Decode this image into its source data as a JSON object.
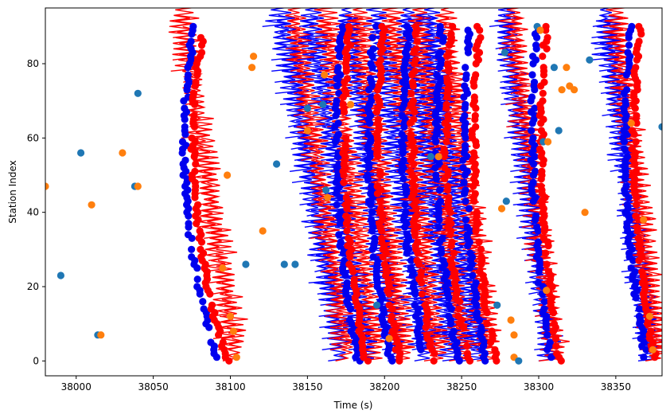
{
  "chart_data": {
    "type": "scatter",
    "title": "",
    "xlabel": "Time (s)",
    "ylabel": "Station Index",
    "xlim": [
      37980,
      38380
    ],
    "ylim": [
      -4,
      95
    ],
    "x_ticks": [
      38000,
      38050,
      38100,
      38150,
      38200,
      38250,
      38300,
      38350
    ],
    "y_ticks": [
      0,
      20,
      40,
      60,
      80
    ],
    "grid": false,
    "legend": "none",
    "colors": {
      "pick_blue": "#0000ee",
      "pick_red": "#ff0000",
      "tab_blue": "#1f77b4",
      "tab_orange": "#ff7f0e",
      "trace_blue": "#0000ff",
      "trace_red": "#ff0000"
    },
    "trace_groups": [
      {
        "color": "red",
        "start": 38100,
        "slope": -0.38
      },
      {
        "color": "blue",
        "start": 38169,
        "slope": -0.43
      },
      {
        "color": "red",
        "start": 38173,
        "slope": -0.38
      },
      {
        "color": "blue",
        "start": 38185,
        "slope": -0.4
      },
      {
        "color": "red",
        "start": 38192,
        "slope": -0.36
      },
      {
        "color": "blue",
        "start": 38205,
        "slope": -0.36
      },
      {
        "color": "red",
        "start": 38210,
        "slope": -0.33
      },
      {
        "color": "blue",
        "start": 38224,
        "slope": -0.35
      },
      {
        "color": "red",
        "start": 38232,
        "slope": -0.34
      },
      {
        "color": "blue",
        "start": 38242,
        "slope": -0.34
      },
      {
        "color": "red",
        "start": 38248,
        "slope": -0.32
      },
      {
        "color": "blue",
        "start": 38257,
        "slope": -0.34
      },
      {
        "color": "red",
        "start": 38265,
        "slope": -0.32
      },
      {
        "color": "blue",
        "start": 38305,
        "slope": -0.33
      },
      {
        "color": "red",
        "start": 38308,
        "slope": -0.31
      },
      {
        "color": "blue",
        "start": 38370,
        "slope": -0.33
      },
      {
        "color": "red",
        "start": 38375,
        "slope": -0.31
      }
    ],
    "pick_fronts": [
      {
        "color": "blue",
        "x_at_0": 38092,
        "min_x": 38070,
        "min_y": 58
      },
      {
        "color": "red",
        "x_at_0": 38098,
        "min_x": 38076,
        "min_y": 58
      },
      {
        "color": "blue",
        "x_at_0": 38183,
        "min_x": 38169,
        "min_y": 60
      },
      {
        "color": "red",
        "x_at_0": 38188,
        "min_x": 38174,
        "min_y": 60
      },
      {
        "color": "blue",
        "x_at_0": 38204,
        "min_x": 38190,
        "min_y": 60
      },
      {
        "color": "red",
        "x_at_0": 38210,
        "min_x": 38196,
        "min_y": 60
      },
      {
        "color": "blue",
        "x_at_0": 38226,
        "min_x": 38212,
        "min_y": 60
      },
      {
        "color": "red",
        "x_at_0": 38232,
        "min_x": 38218,
        "min_y": 60
      },
      {
        "color": "blue",
        "x_at_0": 38248,
        "min_x": 38234,
        "min_y": 60
      },
      {
        "color": "red",
        "x_at_0": 38254,
        "min_x": 38240,
        "min_y": 60
      },
      {
        "color": "blue",
        "x_at_0": 38266,
        "min_x": 38252,
        "min_y": 60
      },
      {
        "color": "red",
        "x_at_0": 38272,
        "min_x": 38258,
        "min_y": 60
      },
      {
        "color": "blue",
        "x_at_0": 38308,
        "min_x": 38296,
        "min_y": 60
      },
      {
        "color": "red",
        "x_at_0": 38314,
        "min_x": 38302,
        "min_y": 60
      },
      {
        "color": "blue",
        "x_at_0": 38370,
        "min_x": 38356,
        "min_y": 60
      },
      {
        "color": "red",
        "x_at_0": 38376,
        "min_x": 38362,
        "min_y": 60
      }
    ],
    "scatter_points": [
      {
        "x": 37980,
        "y": 47,
        "c": "orange"
      },
      {
        "x": 37990,
        "y": 23,
        "c": "blue"
      },
      {
        "x": 38003,
        "y": 56,
        "c": "blue"
      },
      {
        "x": 38010,
        "y": 42,
        "c": "orange"
      },
      {
        "x": 38014,
        "y": 7,
        "c": "blue"
      },
      {
        "x": 38016,
        "y": 7,
        "c": "orange"
      },
      {
        "x": 38030,
        "y": 56,
        "c": "orange"
      },
      {
        "x": 38038,
        "y": 47,
        "c": "blue"
      },
      {
        "x": 38040,
        "y": 72,
        "c": "blue"
      },
      {
        "x": 38040,
        "y": 47,
        "c": "orange"
      },
      {
        "x": 38095,
        "y": 25,
        "c": "orange"
      },
      {
        "x": 38098,
        "y": 50,
        "c": "orange"
      },
      {
        "x": 38100,
        "y": 12,
        "c": "orange"
      },
      {
        "x": 38102,
        "y": 8,
        "c": "orange"
      },
      {
        "x": 38104,
        "y": 1,
        "c": "orange"
      },
      {
        "x": 38110,
        "y": 26,
        "c": "blue"
      },
      {
        "x": 38114,
        "y": 79,
        "c": "orange"
      },
      {
        "x": 38115,
        "y": 82,
        "c": "orange"
      },
      {
        "x": 38121,
        "y": 35,
        "c": "orange"
      },
      {
        "x": 38130,
        "y": 53,
        "c": "blue"
      },
      {
        "x": 38135,
        "y": 26,
        "c": "blue"
      },
      {
        "x": 38142,
        "y": 26,
        "c": "blue"
      },
      {
        "x": 38150,
        "y": 68,
        "c": "blue"
      },
      {
        "x": 38150,
        "y": 62,
        "c": "orange"
      },
      {
        "x": 38160,
        "y": 69,
        "c": "blue"
      },
      {
        "x": 38162,
        "y": 46,
        "c": "blue"
      },
      {
        "x": 38163,
        "y": 44,
        "c": "orange"
      },
      {
        "x": 38161,
        "y": 77,
        "c": "orange"
      },
      {
        "x": 38178,
        "y": 69,
        "c": "orange"
      },
      {
        "x": 38195,
        "y": 15,
        "c": "blue"
      },
      {
        "x": 38203,
        "y": 6,
        "c": "orange"
      },
      {
        "x": 38230,
        "y": 55,
        "c": "blue"
      },
      {
        "x": 38235,
        "y": 55,
        "c": "orange"
      },
      {
        "x": 38273,
        "y": 15,
        "c": "blue"
      },
      {
        "x": 38276,
        "y": 41,
        "c": "orange"
      },
      {
        "x": 38278,
        "y": 83,
        "c": "blue"
      },
      {
        "x": 38279,
        "y": 43,
        "c": "blue"
      },
      {
        "x": 38282,
        "y": 11,
        "c": "orange"
      },
      {
        "x": 38284,
        "y": 7,
        "c": "orange"
      },
      {
        "x": 38284,
        "y": 1,
        "c": "orange"
      },
      {
        "x": 38287,
        "y": 0,
        "c": "blue"
      },
      {
        "x": 38299,
        "y": 90,
        "c": "blue"
      },
      {
        "x": 38301,
        "y": 89,
        "c": "orange"
      },
      {
        "x": 38303,
        "y": 59,
        "c": "blue"
      },
      {
        "x": 38305,
        "y": 19,
        "c": "orange"
      },
      {
        "x": 38306,
        "y": 59,
        "c": "orange"
      },
      {
        "x": 38310,
        "y": 79,
        "c": "blue"
      },
      {
        "x": 38313,
        "y": 62,
        "c": "blue"
      },
      {
        "x": 38315,
        "y": 73,
        "c": "orange"
      },
      {
        "x": 38318,
        "y": 79,
        "c": "orange"
      },
      {
        "x": 38320,
        "y": 74,
        "c": "orange"
      },
      {
        "x": 38323,
        "y": 73,
        "c": "orange"
      },
      {
        "x": 38330,
        "y": 40,
        "c": "orange"
      },
      {
        "x": 38333,
        "y": 81,
        "c": "blue"
      },
      {
        "x": 38360,
        "y": 64,
        "c": "orange"
      },
      {
        "x": 38368,
        "y": 38,
        "c": "orange"
      },
      {
        "x": 38372,
        "y": 12,
        "c": "orange"
      },
      {
        "x": 38374,
        "y": 3,
        "c": "orange"
      },
      {
        "x": 38380,
        "y": 63,
        "c": "blue"
      }
    ]
  }
}
